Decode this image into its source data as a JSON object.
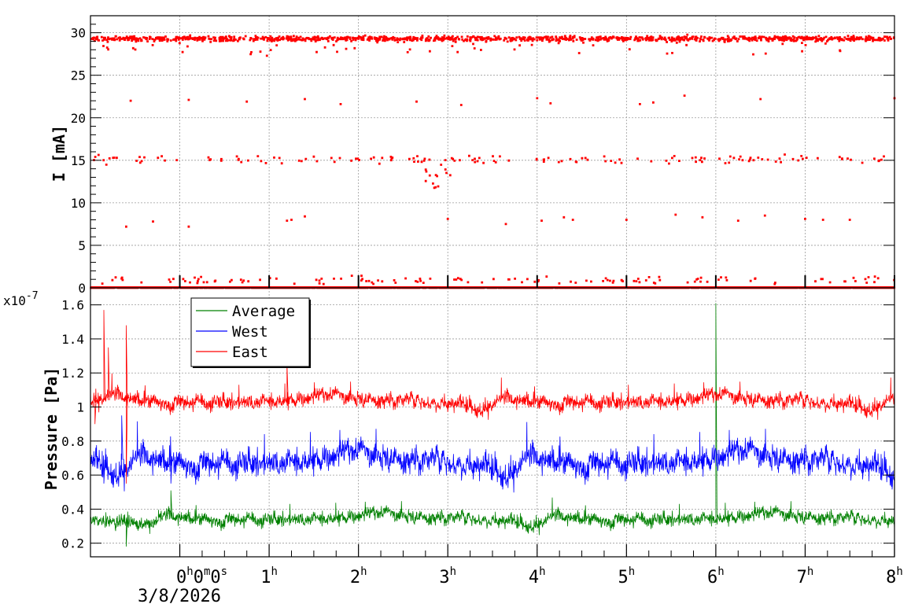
{
  "chart_data": [
    {
      "type": "scatter",
      "ylabel": "I [mA]",
      "xlim": [
        -1,
        8
      ],
      "ylim": [
        0,
        32
      ],
      "y_ticks": [
        0,
        5,
        10,
        15,
        20,
        25,
        30
      ],
      "grid": true,
      "series": [
        {
          "color": "#ff0000",
          "bands": [
            {
              "level": 29.3,
              "density": 1300,
              "spread": 0.3
            },
            {
              "level": 15.1,
              "density": 150,
              "spread": 0.45
            },
            {
              "level": 0.0,
              "density": 1300,
              "spread": 0.0
            },
            {
              "level": 0.9,
              "density": 130,
              "spread": 0.45
            }
          ],
          "sparse_x": [
            -0.55,
            0.1,
            0.75,
            1.4,
            1.8,
            2.65,
            3.15,
            4.0,
            4.15,
            5.15,
            5.3,
            5.65,
            6.5,
            8.0
          ],
          "sparse_y": [
            22.0,
            22.1,
            21.9,
            22.2,
            21.6,
            21.9,
            21.5,
            22.3,
            21.7,
            21.6,
            21.8,
            22.6,
            22.2,
            22.3
          ],
          "mid_x": [
            -0.6,
            -0.3,
            0.1,
            1.2,
            1.25,
            1.4,
            3.0,
            3.65,
            4.05,
            4.3,
            4.4,
            5.0,
            5.55,
            5.85,
            6.25,
            6.55,
            7.0,
            7.2,
            7.5
          ],
          "mid_y": [
            7.2,
            7.8,
            7.2,
            7.9,
            8.0,
            8.4,
            8.1,
            7.5,
            7.9,
            8.3,
            8.0,
            8.0,
            8.6,
            8.3,
            7.9,
            8.5,
            8.1,
            8.0,
            8.0
          ]
        }
      ]
    },
    {
      "type": "line",
      "ylabel": "Pressure [Pa]",
      "exponent_label": "x10",
      "exponent_value": "-7",
      "xlim": [
        -1,
        8
      ],
      "ylim": [
        0.12,
        1.7
      ],
      "y_ticks": [
        "0.2",
        "0.4",
        "0.6",
        "0.8",
        "1",
        "1.2",
        "1.4",
        "1.6"
      ],
      "grid": true,
      "legend": {
        "placement": "top-left",
        "entries": [
          {
            "name": "Average",
            "color": "#008000"
          },
          {
            "name": "West",
            "color": "#0000ff"
          },
          {
            "name": "East",
            "color": "#ff0000"
          }
        ]
      },
      "series": [
        {
          "name": "Average",
          "color": "#008000",
          "mean": 0.35,
          "noise": 0.04,
          "spikes": [
            [
              -0.6,
              0.18
            ],
            [
              6.0,
              1.61
            ],
            [
              -0.1,
              0.51
            ]
          ]
        },
        {
          "name": "West",
          "color": "#0000ff",
          "mean": 0.69,
          "noise": 0.075,
          "spikes": [
            [
              -0.85,
              0.55
            ],
            [
              -0.65,
              0.95
            ],
            [
              -0.1,
              0.55
            ]
          ]
        },
        {
          "name": "East",
          "color": "#ff0000",
          "mean": 1.04,
          "noise": 0.045,
          "spikes": [
            [
              -0.85,
              1.57
            ],
            [
              -0.6,
              1.48
            ],
            [
              -0.8,
              1.35
            ],
            [
              -0.6,
              0.55
            ],
            [
              -0.95,
              0.9
            ],
            [
              1.2,
              1.25
            ]
          ]
        }
      ]
    }
  ],
  "x_axis": {
    "ticks": [
      {
        "value": 0,
        "parts": [
          "0",
          "h",
          "0",
          "m",
          "0",
          "s"
        ]
      },
      {
        "value": 1,
        "parts": [
          "1",
          "h"
        ]
      },
      {
        "value": 2,
        "parts": [
          "2",
          "h"
        ]
      },
      {
        "value": 3,
        "parts": [
          "3",
          "h"
        ]
      },
      {
        "value": 4,
        "parts": [
          "4",
          "h"
        ]
      },
      {
        "value": 5,
        "parts": [
          "5",
          "h"
        ]
      },
      {
        "value": 6,
        "parts": [
          "6",
          "h"
        ]
      },
      {
        "value": 7,
        "parts": [
          "7",
          "h"
        ]
      },
      {
        "value": 8,
        "parts": [
          "8",
          "h"
        ]
      }
    ],
    "date": "3/8/2026"
  }
}
